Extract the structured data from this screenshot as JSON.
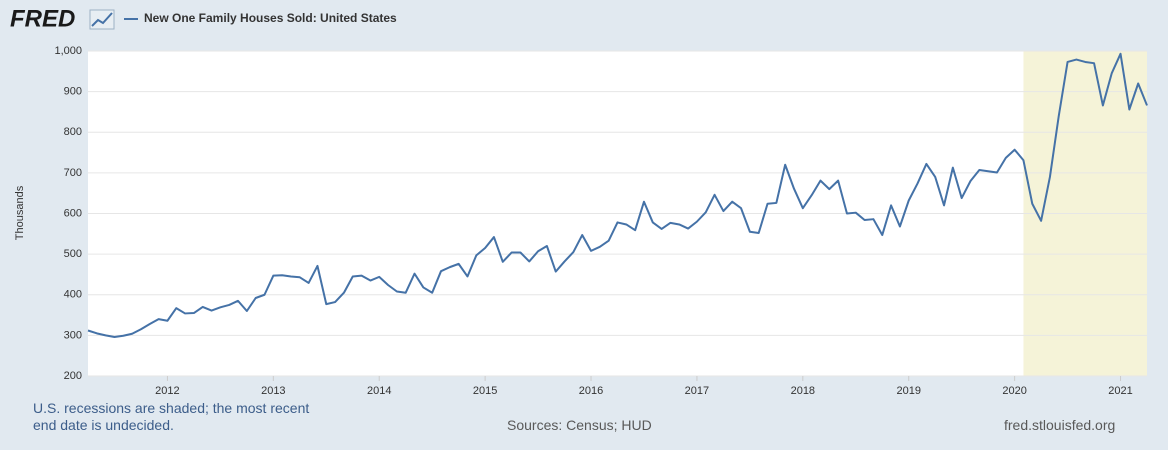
{
  "logo": "FRED",
  "chart_data": {
    "type": "line",
    "title": "New One Family Houses Sold: United States",
    "ylabel": "Thousands",
    "note": "U.S. recessions are shaded; the most recent end date is undecided.",
    "source": "Sources: Census; HUD",
    "site": "fred.stlouisfed.org",
    "xlim": [
      2011.25,
      2021.25
    ],
    "xticks": [
      2012,
      2013,
      2014,
      2015,
      2016,
      2017,
      2018,
      2019,
      2020,
      2021
    ],
    "ylim": [
      200,
      1000
    ],
    "yticks": [
      200,
      300,
      400,
      500,
      600,
      700,
      800,
      900,
      {
        "value": 1000,
        "label": "1,000"
      }
    ],
    "grid": true,
    "recessions": [
      [
        2020.0833,
        2021.25
      ]
    ],
    "recession_color": "#f5f3d8",
    "x": [
      2011.25,
      2011.3333,
      2011.4167,
      2011.5,
      2011.5833,
      2011.6667,
      2011.75,
      2011.8333,
      2011.9167,
      2012,
      2012.0833,
      2012.1667,
      2012.25,
      2012.3333,
      2012.4167,
      2012.5,
      2012.5833,
      2012.6667,
      2012.75,
      2012.8333,
      2012.9167,
      2013,
      2013.0833,
      2013.1667,
      2013.25,
      2013.3333,
      2013.4167,
      2013.5,
      2013.5833,
      2013.6667,
      2013.75,
      2013.8333,
      2013.9167,
      2014,
      2014.0833,
      2014.1667,
      2014.25,
      2014.3333,
      2014.4167,
      2014.5,
      2014.5833,
      2014.6667,
      2014.75,
      2014.8333,
      2014.9167,
      2015,
      2015.0833,
      2015.1667,
      2015.25,
      2015.3333,
      2015.4167,
      2015.5,
      2015.5833,
      2015.6667,
      2015.75,
      2015.8333,
      2015.9167,
      2016,
      2016.0833,
      2016.1667,
      2016.25,
      2016.3333,
      2016.4167,
      2016.5,
      2016.5833,
      2016.6667,
      2016.75,
      2016.8333,
      2016.9167,
      2017,
      2017.0833,
      2017.1667,
      2017.25,
      2017.3333,
      2017.4167,
      2017.5,
      2017.5833,
      2017.6667,
      2017.75,
      2017.8333,
      2017.9167,
      2018,
      2018.0833,
      2018.1667,
      2018.25,
      2018.3333,
      2018.4167,
      2018.5,
      2018.5833,
      2018.6667,
      2018.75,
      2018.8333,
      2018.9167,
      2019,
      2019.0833,
      2019.1667,
      2019.25,
      2019.3333,
      2019.4167,
      2019.5,
      2019.5833,
      2019.6667,
      2019.75,
      2019.8333,
      2019.9167,
      2020,
      2020.0833,
      2020.1667,
      2020.25,
      2020.3333,
      2020.4167,
      2020.5,
      2020.5833,
      2020.6667,
      2020.75,
      2020.8333,
      2020.9167,
      2021,
      2021.0833,
      2021.1667,
      2021.25
    ],
    "series": [
      {
        "name": "New One Family Houses Sold: United States",
        "color": "#4572a7",
        "values": [
          312,
          305,
          300,
          296,
          299,
          304,
          315,
          328,
          340,
          336,
          367,
          354,
          355,
          370,
          361,
          369,
          375,
          385,
          360,
          392,
          400,
          447,
          448,
          445,
          443,
          429,
          471,
          377,
          382,
          405,
          445,
          447,
          435,
          444,
          424,
          408,
          405,
          452,
          418,
          405,
          458,
          468,
          476,
          445,
          497,
          515,
          542,
          481,
          504,
          504,
          482,
          507,
          520,
          457,
          482,
          505,
          547,
          508,
          518,
          533,
          578,
          573,
          559,
          629,
          578,
          562,
          577,
          573,
          563,
          580,
          603,
          646,
          606,
          629,
          613,
          555,
          552,
          624,
          626,
          720,
          661,
          613,
          645,
          681,
          660,
          681,
          600,
          602,
          584,
          586,
          547,
          620,
          568,
          632,
          674,
          722,
          690,
          620,
          713,
          638,
          680,
          707,
          704,
          701,
          737,
          757,
          731,
          624,
          582,
          690,
          840,
          973,
          979,
          973,
          970,
          866,
          945,
          993,
          856,
          920,
          866
        ]
      }
    ]
  }
}
